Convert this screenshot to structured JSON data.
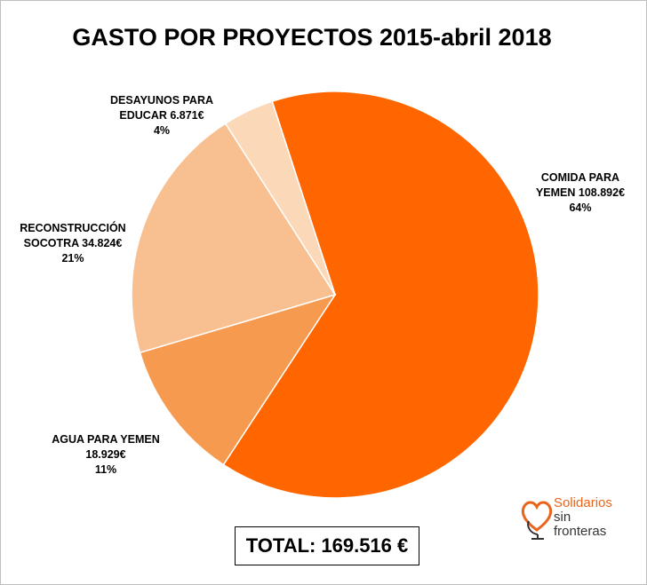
{
  "chart_data": {
    "type": "pie",
    "title": "GASTO POR PROYECTOS 2015-abril 2018",
    "slices": [
      {
        "name_lines": [
          "COMIDA PARA",
          "YEMEN 108.892€"
        ],
        "value": 108892,
        "percent_label": "64%",
        "color": "#ff6600"
      },
      {
        "name_lines": [
          "AGUA PARA YEMEN",
          "18.929€"
        ],
        "value": 18929,
        "percent_label": "11%",
        "color": "#f59a4e"
      },
      {
        "name_lines": [
          "RECONSTRUCCIÓN",
          "SOCOTRA 34.824€"
        ],
        "value": 34824,
        "percent_label": "21%",
        "color": "#f8c090"
      },
      {
        "name_lines": [
          "DESAYUNOS PARA",
          "EDUCAR 6.871€"
        ],
        "value": 6871,
        "percent_label": "4%",
        "color": "#fbd8b8"
      }
    ],
    "start_angle_deg": 0
  },
  "total": {
    "label": "TOTAL:",
    "value": "169.516 €"
  },
  "logo": {
    "line1": "Solidarios",
    "line2": "sin",
    "line3": "fronteras",
    "icon": "heart-globe-icon",
    "accent": "#e8651b"
  }
}
